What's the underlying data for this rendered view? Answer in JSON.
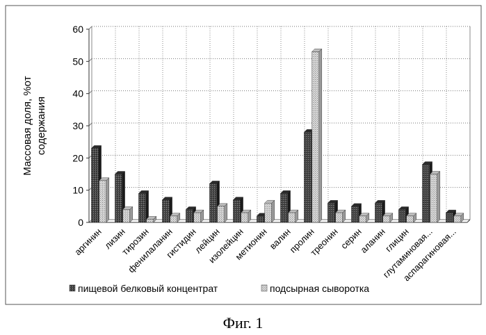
{
  "caption": "Фиг. 1",
  "chart_data": {
    "type": "bar",
    "title": "",
    "xlabel": "",
    "ylabel": "Массовая доля, %от содержания",
    "ylabel_lines": [
      "Массовая доля, %от",
      "содержания"
    ],
    "ylim": [
      0,
      60
    ],
    "yticks": [
      0,
      10,
      20,
      30,
      40,
      50,
      60
    ],
    "grid": true,
    "legend_position": "bottom",
    "categories": [
      "аргинин",
      "лизин",
      "тирозин",
      "фенилаланин",
      "гистидин",
      "лейцин",
      "изолейцин",
      "метионин",
      "валин",
      "пролин",
      "треонин",
      "серин",
      "аланин",
      "глицин",
      "глутаминовая...",
      "аспарагиновая..."
    ],
    "series": [
      {
        "name": "пищевой белковый концентрат",
        "color": "#3a3a3a",
        "values": [
          23,
          15,
          9,
          7,
          4,
          12,
          7,
          2,
          9,
          28,
          6,
          5,
          6,
          4,
          18,
          3
        ]
      },
      {
        "name": "подсырная сыворотка",
        "color": "#c2c2c2",
        "values": [
          13,
          4,
          1,
          2,
          3,
          5,
          3,
          6,
          3,
          53,
          3,
          2,
          2,
          2,
          15,
          2
        ]
      }
    ]
  }
}
